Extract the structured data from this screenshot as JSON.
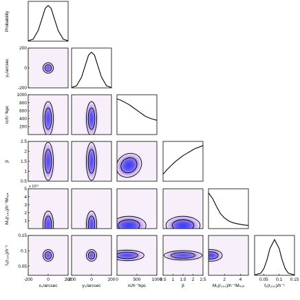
{
  "chart_data": {
    "type": "corner",
    "parameters": [
      {
        "key": "x0",
        "axis_label": "x₀/arcsec",
        "range": [
          -200,
          200
        ],
        "ticks": [
          -200,
          0,
          200
        ]
      },
      {
        "key": "y0",
        "axis_label": "y₀/arcsec",
        "range": [
          -200,
          200
        ],
        "ticks": [
          -200,
          0,
          200
        ]
      },
      {
        "key": "rc",
        "axis_label": "rᴄ/h⁻¹kpc",
        "range": [
          0,
          1000
        ],
        "ticks": [
          0,
          500,
          1000
        ],
        "y_ticks": [
          200,
          400,
          600,
          800,
          1000
        ]
      },
      {
        "key": "beta",
        "axis_label": "β",
        "range": [
          0.5,
          2.5
        ],
        "ticks": [
          0.5,
          1,
          1.5,
          2,
          2.5
        ]
      },
      {
        "key": "Mgas",
        "axis_label": "M₉(r₂₀₀)/h⁻¹Mₛᵤₙ",
        "range": [
          0,
          5000000000000000.0
        ],
        "ticks": [
          1000000000000000.0,
          2000000000000000.0,
          3000000000000000.0,
          4000000000000000.0,
          5000000000000000.0
        ],
        "tick_labels": [
          "1",
          "2",
          "3",
          "4",
          "5"
        ],
        "x_ticks": [
          2000000000000000.0,
          4000000000000000.0
        ],
        "x_tick_labels": [
          "2",
          "4"
        ],
        "scale_text": "x 10¹⁵"
      },
      {
        "key": "fg",
        "axis_label": "f₉(r₂₀₀)/h⁻¹",
        "range": [
          0.02,
          0.15
        ],
        "ticks": [
          0.05,
          0.1,
          0.15
        ],
        "tick_labels": [
          "0.05",
          "0.1",
          "0.15"
        ]
      }
    ],
    "y_axis_labels": [
      "Probability",
      "y₀/arcsec",
      "rᴄ/h⁻¹kpc",
      "β",
      "M₉(r₂₀₀)/h⁻¹Mₛᵤₙ",
      "f₉(r₂₀₀)/h⁻¹"
    ],
    "x_axis_labels": [
      "x₀/arcsec",
      "y₀/arcsec",
      "rᴄ/h⁻¹kpc",
      "β",
      "M₉(r₂₀₀)/h⁻¹Mₛᵤₙ",
      "f₉(r₂₀₀)/h⁻¹"
    ],
    "marginals": [
      {
        "param": "x0",
        "x": [
          -200,
          -150,
          -100,
          -60,
          -30,
          0,
          30,
          60,
          100,
          150,
          200
        ],
        "y": [
          0.01,
          0.06,
          0.3,
          0.65,
          0.92,
          1.0,
          0.92,
          0.65,
          0.3,
          0.06,
          0.01
        ]
      },
      {
        "param": "y0",
        "x": [
          -200,
          -150,
          -100,
          -60,
          -30,
          0,
          30,
          60,
          100,
          150,
          200
        ],
        "y": [
          0.01,
          0.06,
          0.3,
          0.65,
          0.92,
          1.0,
          0.92,
          0.65,
          0.3,
          0.06,
          0.01
        ]
      },
      {
        "param": "rc",
        "x": [
          0,
          100,
          200,
          300,
          400,
          500,
          600,
          700,
          800,
          900,
          1000
        ],
        "y": [
          1.0,
          0.96,
          0.9,
          0.84,
          0.76,
          0.68,
          0.6,
          0.52,
          0.47,
          0.43,
          0.4
        ]
      },
      {
        "param": "beta",
        "x": [
          0.5,
          0.7,
          0.9,
          1.1,
          1.3,
          1.5,
          1.7,
          1.9,
          2.1,
          2.3,
          2.5
        ],
        "y": [
          0.18,
          0.3,
          0.4,
          0.5,
          0.58,
          0.66,
          0.72,
          0.78,
          0.84,
          0.88,
          0.92
        ]
      },
      {
        "param": "Mgas",
        "x": [
          0,
          500000000000000.0,
          1000000000000000.0,
          1500000000000000.0,
          2000000000000000.0,
          2500000000000000.0,
          3000000000000000.0,
          3500000000000000.0,
          4000000000000000.0,
          4500000000000000.0,
          5000000000000000.0
        ],
        "y": [
          1.0,
          0.85,
          0.62,
          0.42,
          0.3,
          0.22,
          0.17,
          0.14,
          0.12,
          0.1,
          0.09
        ]
      },
      {
        "param": "fg",
        "x": [
          0.02,
          0.04,
          0.05,
          0.06,
          0.07,
          0.085,
          0.1,
          0.11,
          0.12,
          0.13,
          0.15
        ],
        "y": [
          0.01,
          0.06,
          0.18,
          0.42,
          0.75,
          1.0,
          0.75,
          0.42,
          0.18,
          0.06,
          0.01
        ]
      }
    ],
    "joint_panels": [
      {
        "x": "x0",
        "y": "y0",
        "shape": "round",
        "center": [
          0,
          0
        ],
        "spread": [
          55,
          55
        ]
      },
      {
        "x": "x0",
        "y": "rc",
        "shape": "column",
        "center": [
          0,
          400
        ],
        "spread": [
          55,
          450
        ]
      },
      {
        "x": "y0",
        "y": "rc",
        "shape": "column",
        "center": [
          0,
          400
        ],
        "spread": [
          55,
          450
        ]
      },
      {
        "x": "x0",
        "y": "beta",
        "shape": "column",
        "center": [
          0,
          1.5
        ],
        "spread": [
          55,
          1.0
        ]
      },
      {
        "x": "y0",
        "y": "beta",
        "shape": "column",
        "center": [
          0,
          1.5
        ],
        "spread": [
          55,
          1.0
        ]
      },
      {
        "x": "rc",
        "y": "beta",
        "shape": "diagonal",
        "center": [
          300,
          1.3
        ],
        "spread": [
          350,
          0.6
        ]
      },
      {
        "x": "x0",
        "y": "Mgas",
        "shape": "bottom",
        "center": [
          0,
          500000000000000.0
        ],
        "spread": [
          55,
          1800000000000000.0
        ]
      },
      {
        "x": "y0",
        "y": "Mgas",
        "shape": "bottom",
        "center": [
          0,
          500000000000000.0
        ],
        "spread": [
          55,
          1800000000000000.0
        ]
      },
      {
        "x": "rc",
        "y": "Mgas",
        "shape": "bottom",
        "center": [
          300,
          400000000000000.0
        ],
        "spread": [
          450,
          1200000000000000.0
        ]
      },
      {
        "x": "beta",
        "y": "Mgas",
        "shape": "bottom",
        "center": [
          1.5,
          400000000000000.0
        ],
        "spread": [
          0.9,
          1200000000000000.0
        ]
      },
      {
        "x": "x0",
        "y": "fg",
        "shape": "round",
        "center": [
          0,
          0.085
        ],
        "spread": [
          55,
          0.02
        ]
      },
      {
        "x": "y0",
        "y": "fg",
        "shape": "round",
        "center": [
          0,
          0.085
        ],
        "spread": [
          55,
          0.02
        ]
      },
      {
        "x": "rc",
        "y": "fg",
        "shape": "band",
        "center": [
          250,
          0.085
        ],
        "spread": [
          450,
          0.018
        ]
      },
      {
        "x": "beta",
        "y": "fg",
        "shape": "band",
        "center": [
          1.5,
          0.085
        ],
        "spread": [
          1.0,
          0.016
        ]
      },
      {
        "x": "Mgas",
        "y": "fg",
        "shape": "left",
        "center": [
          300000000000000.0,
          0.085
        ],
        "spread": [
          1500000000000000.0,
          0.02
        ]
      }
    ],
    "colors": {
      "density_low": "#f7f0fb",
      "density_mid": "#b98be6",
      "density_high": "#3030ff",
      "contour": "#000000",
      "frame": "#000000"
    },
    "grid": false
  }
}
